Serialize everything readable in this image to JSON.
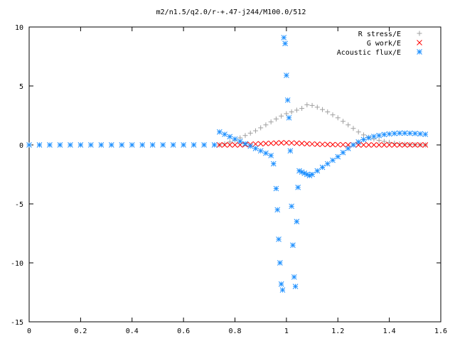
{
  "chart_data": {
    "type": "scatter",
    "title": "m2/n1.5/q2.0/r-+.47-j244/M100.0/512",
    "xlabel": "",
    "ylabel": "",
    "xlim": [
      0,
      1.6
    ],
    "ylim": [
      -15,
      10
    ],
    "x_ticks": [
      0,
      0.2,
      0.4,
      0.6,
      0.8,
      1,
      1.2,
      1.4,
      1.6
    ],
    "x_tick_labels": [
      "0",
      "0.2",
      "0.4",
      "0.6",
      "0.8",
      "1",
      "1.2",
      "1.4",
      "1.6"
    ],
    "y_ticks": [
      -15,
      -10,
      -5,
      0,
      5,
      10
    ],
    "y_tick_labels": [
      "-15",
      "-10",
      "-5",
      "0",
      "5",
      "10"
    ],
    "grid": false,
    "legend_position": "top-right",
    "series": [
      {
        "name": "R stress/E",
        "marker": "plus",
        "color": "#a0a0a0",
        "x": [
          0.74,
          0.76,
          0.78,
          0.8,
          0.82,
          0.84,
          0.86,
          0.88,
          0.9,
          0.92,
          0.94,
          0.96,
          0.98,
          1.0,
          1.02,
          1.04,
          1.06,
          1.08,
          1.1,
          1.12,
          1.14,
          1.16,
          1.18,
          1.2,
          1.22,
          1.24,
          1.26,
          1.28,
          1.3,
          1.32,
          1.34,
          1.36,
          1.38,
          1.4,
          1.42,
          1.44,
          1.46,
          1.48,
          1.5,
          1.52,
          1.54
        ],
        "y": [
          0.0,
          0.1,
          0.25,
          0.4,
          0.6,
          0.8,
          1.0,
          1.2,
          1.45,
          1.7,
          1.95,
          2.2,
          2.45,
          2.65,
          2.8,
          2.95,
          3.1,
          3.4,
          3.35,
          3.2,
          3.0,
          2.8,
          2.55,
          2.3,
          2.0,
          1.7,
          1.4,
          1.1,
          0.85,
          0.65,
          0.5,
          0.38,
          0.3,
          0.22,
          0.15,
          0.1,
          0.06,
          0.04,
          0.02,
          0.01,
          0.0
        ]
      },
      {
        "name": "G work/E",
        "marker": "cross",
        "color": "#ff0000",
        "x": [
          0.74,
          0.76,
          0.78,
          0.8,
          0.82,
          0.84,
          0.86,
          0.88,
          0.9,
          0.92,
          0.94,
          0.96,
          0.98,
          1.0,
          1.02,
          1.04,
          1.06,
          1.08,
          1.1,
          1.12,
          1.14,
          1.16,
          1.18,
          1.2,
          1.22,
          1.24,
          1.26,
          1.28,
          1.3,
          1.32,
          1.34,
          1.36,
          1.38,
          1.4,
          1.42,
          1.44,
          1.46,
          1.48,
          1.5,
          1.52,
          1.54
        ],
        "y": [
          0.0,
          0.0,
          0.0,
          0.0,
          0.0,
          0.02,
          0.05,
          0.08,
          0.1,
          0.12,
          0.14,
          0.16,
          0.18,
          0.18,
          0.17,
          0.15,
          0.13,
          0.1,
          0.08,
          0.06,
          0.05,
          0.04,
          0.03,
          0.02,
          0.02,
          0.01,
          0.01,
          0.0,
          0.0,
          0.0,
          0.0,
          0.0,
          0.0,
          0.0,
          0.0,
          0.0,
          0.0,
          0.0,
          0.0,
          0.0,
          0.0
        ]
      },
      {
        "name": "Acoustic flux/E",
        "marker": "star",
        "color": "#1e90ff",
        "x": [
          0.0,
          0.04,
          0.08,
          0.12,
          0.16,
          0.2,
          0.24,
          0.28,
          0.32,
          0.36,
          0.4,
          0.44,
          0.48,
          0.52,
          0.56,
          0.6,
          0.64,
          0.68,
          0.72,
          0.74,
          0.76,
          0.78,
          0.8,
          0.82,
          0.84,
          0.86,
          0.88,
          0.9,
          0.92,
          0.94,
          0.95,
          0.96,
          0.965,
          0.97,
          0.975,
          0.98,
          0.985,
          0.99,
          0.995,
          1.0,
          1.005,
          1.01,
          1.015,
          1.02,
          1.025,
          1.03,
          1.035,
          1.04,
          1.045,
          1.05,
          1.06,
          1.07,
          1.08,
          1.09,
          1.1,
          1.12,
          1.14,
          1.16,
          1.18,
          1.2,
          1.22,
          1.24,
          1.26,
          1.28,
          1.3,
          1.32,
          1.34,
          1.36,
          1.38,
          1.4,
          1.42,
          1.44,
          1.46,
          1.48,
          1.5,
          1.52,
          1.54
        ],
        "y": [
          0.0,
          0.0,
          0.0,
          0.0,
          0.0,
          0.0,
          0.0,
          0.0,
          0.0,
          0.0,
          0.0,
          0.0,
          0.0,
          0.0,
          0.0,
          0.0,
          0.0,
          0.0,
          0.0,
          1.1,
          0.9,
          0.7,
          0.5,
          0.3,
          0.1,
          -0.1,
          -0.3,
          -0.5,
          -0.7,
          -0.9,
          -1.6,
          -3.7,
          -5.5,
          -8.0,
          -10.0,
          -11.8,
          -12.3,
          9.1,
          8.6,
          5.9,
          3.8,
          2.3,
          -0.5,
          -5.2,
          -8.5,
          -11.2,
          -12.0,
          -6.5,
          -3.6,
          -2.2,
          -2.3,
          -2.4,
          -2.5,
          -2.6,
          -2.5,
          -2.2,
          -1.9,
          -1.6,
          -1.3,
          -1.0,
          -0.65,
          -0.3,
          0.0,
          0.25,
          0.45,
          0.6,
          0.72,
          0.8,
          0.88,
          0.93,
          0.97,
          1.0,
          1.0,
          0.99,
          0.97,
          0.94,
          0.9
        ]
      }
    ]
  }
}
